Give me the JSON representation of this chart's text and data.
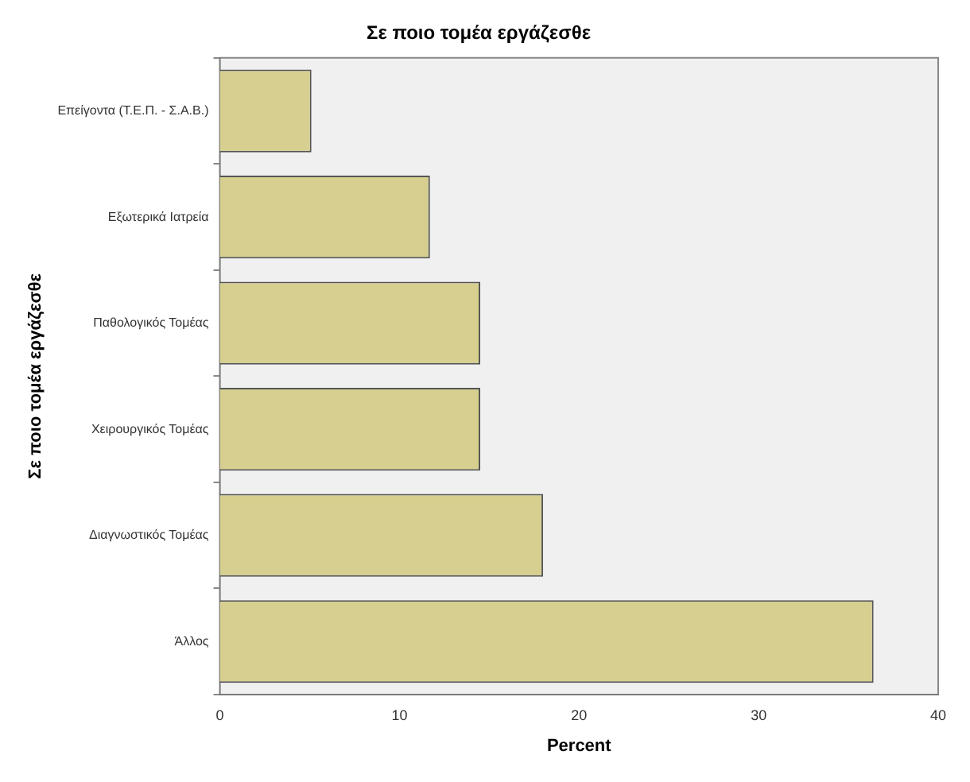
{
  "chart_data": {
    "type": "bar",
    "orientation": "horizontal",
    "title": "Σε ποιο τομέα εργάζεσθε",
    "xlabel": "Percent",
    "ylabel": "Σε ποιο τομέα εργάζεσθε",
    "categories": [
      "Επείγοντα (Τ.Ε.Π. - Σ.Α.Β.)",
      "Εξωτερικά Ιατρεία",
      "Παθολογικός Τομέας",
      "Χειρουργικός Τομέας",
      "Διαγνωστικός Τομέας",
      "Άλλος"
    ],
    "values": [
      5.1,
      11.7,
      14.5,
      14.5,
      18.0,
      36.4
    ],
    "color": "#d6cf8f",
    "xlim": [
      0,
      40
    ],
    "xticks": [
      0,
      10,
      20,
      30,
      40
    ],
    "grid": false,
    "legend": false
  }
}
